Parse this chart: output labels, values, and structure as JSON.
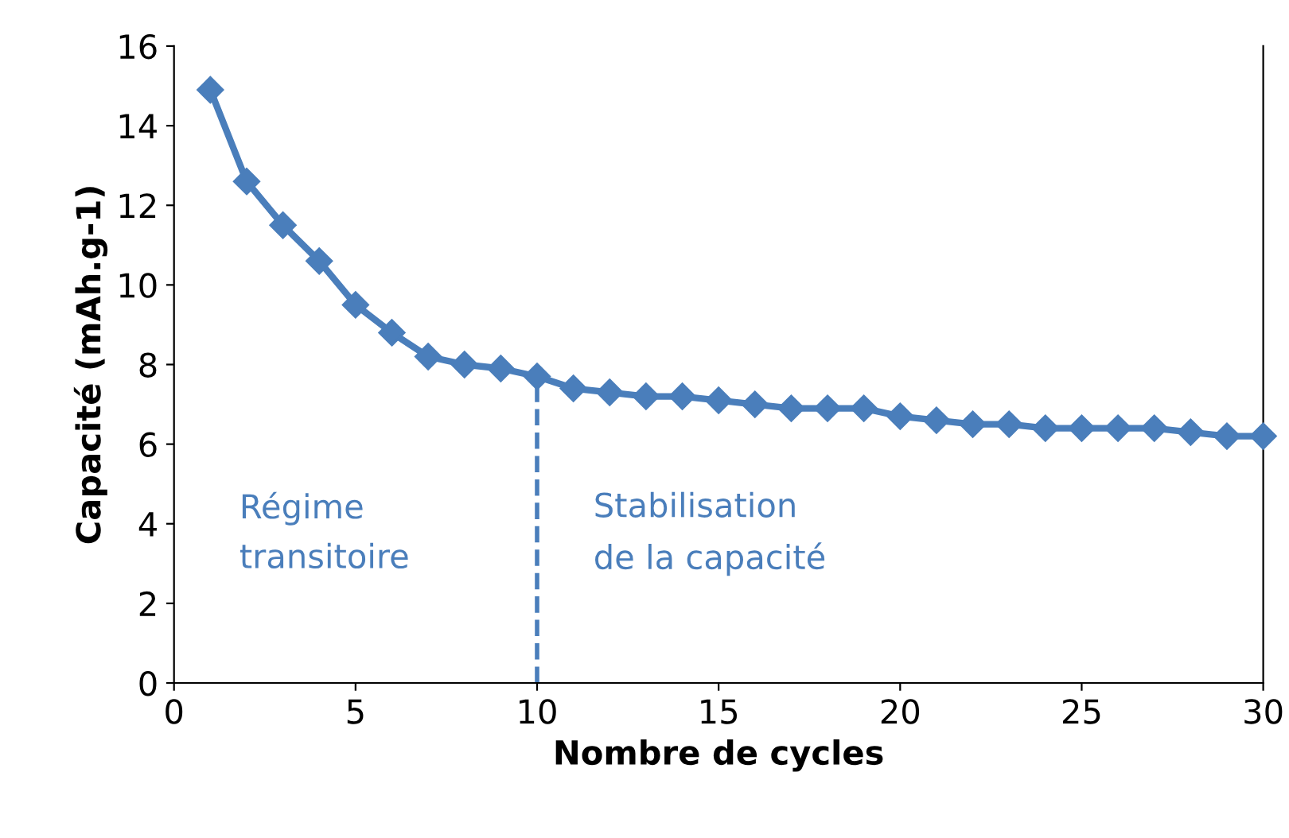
{
  "chart_data": {
    "type": "line",
    "xlabel": "Nombre de cycles",
    "ylabel": "Capacité (mAh.g-1)",
    "x": [
      1,
      2,
      3,
      4,
      5,
      6,
      7,
      8,
      9,
      10,
      11,
      12,
      13,
      14,
      15,
      16,
      17,
      18,
      19,
      20,
      21,
      22,
      23,
      24,
      25,
      26,
      27,
      28,
      29,
      30
    ],
    "series": [
      {
        "color": "#4a7ebb",
        "values": [
          14.9,
          12.6,
          11.5,
          10.6,
          9.5,
          8.8,
          8.2,
          8.0,
          7.9,
          7.7,
          7.4,
          7.3,
          7.2,
          7.2,
          7.1,
          7.0,
          6.9,
          6.9,
          6.9,
          6.7,
          6.6,
          6.5,
          6.5,
          6.4,
          6.4,
          6.4,
          6.4,
          6.3,
          6.2,
          6.2
        ]
      }
    ],
    "xlim": [
      0,
      30
    ],
    "xticks": [
      0,
      5,
      10,
      15,
      20,
      25,
      30
    ],
    "ylim": [
      0,
      16
    ],
    "yticks": [
      0,
      2,
      4,
      6,
      8,
      10,
      12,
      14,
      16
    ],
    "ref_lines": [
      {
        "axis": "x",
        "value": 10,
        "color": "#4a7ebb",
        "line_style": "dashed"
      }
    ],
    "annotations": [
      "Régime\ntransitoire",
      "Stabilisation\nde la capacité"
    ],
    "marker": "diamond",
    "line_style": "solid",
    "grid": false,
    "legend": false
  }
}
